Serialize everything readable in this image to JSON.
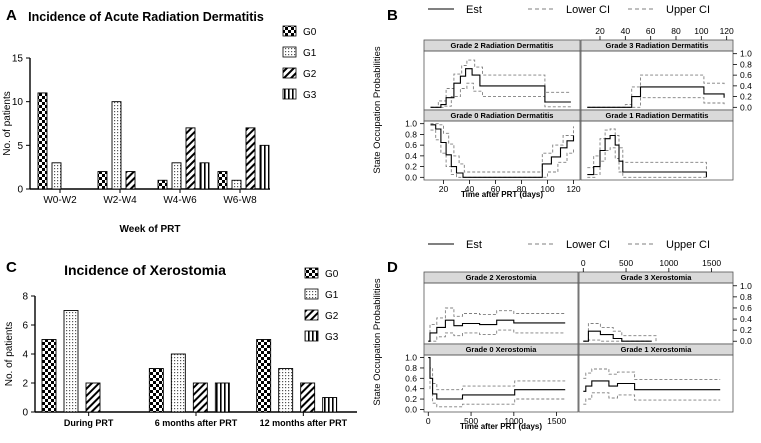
{
  "colors": {
    "axis": "#000000",
    "strip": "#d9d9d9",
    "est": "#000000",
    "ci": "#7f7f7f"
  },
  "chart_data": [
    {
      "panel": "A",
      "type": "bar",
      "title": "Incidence of Acute Radiation Dermatitis",
      "xlabel": "Week of PRT",
      "ylabel": "No. of patients",
      "ylim": [
        0,
        15
      ],
      "yticks": [
        0,
        5,
        10,
        15
      ],
      "categories": [
        "W0-W2",
        "W2-W4",
        "W4-W6",
        "W6-W8"
      ],
      "series": [
        {
          "name": "G0",
          "pattern": "checker",
          "values": [
            11,
            2,
            1,
            2
          ]
        },
        {
          "name": "G1",
          "pattern": "dots",
          "values": [
            3,
            10,
            3,
            1
          ]
        },
        {
          "name": "G2",
          "pattern": "diagonal",
          "values": [
            0,
            2,
            7,
            7
          ]
        },
        {
          "name": "G3",
          "pattern": "vertical",
          "values": [
            0,
            0,
            3,
            5
          ]
        }
      ]
    },
    {
      "panel": "C",
      "type": "bar",
      "title": "Incidence of Xerostomia",
      "xlabel": "",
      "ylabel": "No. of patients",
      "ylim": [
        0,
        8
      ],
      "yticks": [
        0,
        2,
        4,
        6,
        8
      ],
      "categories": [
        "During PRT",
        "6 months after PRT",
        "12 months after PRT"
      ],
      "series": [
        {
          "name": "G0",
          "pattern": "checker",
          "values": [
            5,
            3,
            5
          ]
        },
        {
          "name": "G1",
          "pattern": "dots",
          "values": [
            7,
            4,
            3
          ]
        },
        {
          "name": "G2",
          "pattern": "diagonal",
          "values": [
            2,
            2,
            2
          ]
        },
        {
          "name": "G3",
          "pattern": "vertical",
          "values": [
            0,
            2,
            1
          ]
        }
      ]
    },
    {
      "panel": "B",
      "type": "line",
      "legend": [
        "Est",
        "Lower CI",
        "Upper CI"
      ],
      "ylabel": "State Occupation Probabilities",
      "xlabel": "Time after PRT (days)",
      "xlim": [
        5,
        125
      ],
      "xticks": [
        20,
        40,
        60,
        80,
        100,
        120
      ],
      "ylim": [
        -0.05,
        1.05
      ],
      "yticks": [
        0.0,
        0.2,
        0.4,
        0.6,
        0.8,
        1.0
      ],
      "panels": [
        {
          "title": "Grade 2 Radiation Dermatitis",
          "est": [
            [
              10,
              0
            ],
            [
              18,
              0.05
            ],
            [
              22,
              0.18
            ],
            [
              28,
              0.45
            ],
            [
              33,
              0.58
            ],
            [
              37,
              0.72
            ],
            [
              42,
              0.6
            ],
            [
              48,
              0.4
            ],
            [
              95,
              0.4
            ],
            [
              98,
              0.1
            ],
            [
              118,
              0.1
            ]
          ],
          "lower": [
            [
              10,
              0
            ],
            [
              20,
              0.02
            ],
            [
              26,
              0.2
            ],
            [
              33,
              0.35
            ],
            [
              38,
              0.45
            ],
            [
              43,
              0.3
            ],
            [
              50,
              0.2
            ],
            [
              95,
              0.2
            ],
            [
              98,
              0.01
            ],
            [
              118,
              0.01
            ]
          ],
          "upper": [
            [
              10,
              0
            ],
            [
              16,
              0.12
            ],
            [
              22,
              0.35
            ],
            [
              28,
              0.62
            ],
            [
              34,
              0.78
            ],
            [
              38,
              0.88
            ],
            [
              44,
              0.75
            ],
            [
              50,
              0.6
            ],
            [
              95,
              0.6
            ],
            [
              98,
              0.28
            ],
            [
              118,
              0.28
            ]
          ]
        },
        {
          "title": "Grade 3 Radiation Dermatitis",
          "est": [
            [
              10,
              0
            ],
            [
              40,
              0
            ],
            [
              45,
              0.2
            ],
            [
              52,
              0.38
            ],
            [
              95,
              0.38
            ],
            [
              102,
              0.25
            ],
            [
              118,
              0.18
            ]
          ],
          "lower": [
            [
              10,
              0
            ],
            [
              45,
              0
            ],
            [
              52,
              0.18
            ],
            [
              95,
              0.18
            ],
            [
              102,
              0.08
            ],
            [
              118,
              0.02
            ]
          ],
          "upper": [
            [
              10,
              0
            ],
            [
              40,
              0.05
            ],
            [
              45,
              0.38
            ],
            [
              52,
              0.6
            ],
            [
              95,
              0.6
            ],
            [
              102,
              0.45
            ],
            [
              118,
              0.4
            ]
          ]
        },
        {
          "title": "Grade 0 Radiation Dermatitis",
          "est": [
            [
              10,
              0.98
            ],
            [
              14,
              0.9
            ],
            [
              18,
              0.65
            ],
            [
              22,
              0.42
            ],
            [
              26,
              0.2
            ],
            [
              30,
              0.08
            ],
            [
              35,
              0
            ],
            [
              92,
              0
            ],
            [
              96,
              0.25
            ],
            [
              103,
              0.38
            ],
            [
              110,
              0.55
            ],
            [
              115,
              0.68
            ],
            [
              120,
              0.78
            ]
          ],
          "lower": [
            [
              10,
              0.88
            ],
            [
              14,
              0.7
            ],
            [
              18,
              0.45
            ],
            [
              22,
              0.2
            ],
            [
              26,
              0.05
            ],
            [
              30,
              0
            ],
            [
              96,
              0
            ],
            [
              100,
              0.1
            ],
            [
              108,
              0.28
            ],
            [
              115,
              0.45
            ],
            [
              120,
              0.55
            ]
          ],
          "upper": [
            [
              10,
              1.0
            ],
            [
              16,
              0.98
            ],
            [
              20,
              0.82
            ],
            [
              24,
              0.62
            ],
            [
              28,
              0.4
            ],
            [
              32,
              0.25
            ],
            [
              36,
              0.1
            ],
            [
              92,
              0.1
            ],
            [
              96,
              0.45
            ],
            [
              104,
              0.6
            ],
            [
              112,
              0.78
            ],
            [
              120,
              0.95
            ]
          ]
        },
        {
          "title": "Grade 1 Radiation Dermatitis",
          "est": [
            [
              10,
              0.05
            ],
            [
              15,
              0.2
            ],
            [
              20,
              0.5
            ],
            [
              24,
              0.72
            ],
            [
              28,
              0.78
            ],
            [
              32,
              0.6
            ],
            [
              35,
              0.3
            ],
            [
              38,
              0.1
            ],
            [
              100,
              0.1
            ],
            [
              104,
              0
            ]
          ],
          "lower": [
            [
              10,
              0
            ],
            [
              16,
              0.05
            ],
            [
              20,
              0.3
            ],
            [
              24,
              0.5
            ],
            [
              28,
              0.55
            ],
            [
              32,
              0.35
            ],
            [
              35,
              0.1
            ],
            [
              38,
              0
            ],
            [
              104,
              0
            ]
          ],
          "upper": [
            [
              10,
              0.18
            ],
            [
              15,
              0.4
            ],
            [
              20,
              0.72
            ],
            [
              24,
              0.88
            ],
            [
              28,
              0.9
            ],
            [
              32,
              0.78
            ],
            [
              35,
              0.55
            ],
            [
              38,
              0.28
            ],
            [
              100,
              0.28
            ],
            [
              104,
              0.12
            ]
          ]
        }
      ]
    },
    {
      "panel": "D",
      "type": "line",
      "legend": [
        "Est",
        "Lower CI",
        "Upper CI"
      ],
      "ylabel": "State Occupation Probabilities",
      "xlabel": "Time after PRT (days)",
      "xlim": [
        -50,
        1750
      ],
      "xticks": [
        0,
        500,
        1000,
        1500
      ],
      "ylim": [
        -0.05,
        1.05
      ],
      "yticks": [
        0.0,
        0.2,
        0.4,
        0.6,
        0.8,
        1.0
      ],
      "panels": [
        {
          "title": "Grade 2 Xerostomia",
          "est": [
            [
              0,
              0
            ],
            [
              20,
              0.15
            ],
            [
              100,
              0.25
            ],
            [
              200,
              0.38
            ],
            [
              300,
              0.28
            ],
            [
              400,
              0.32
            ],
            [
              600,
              0.3
            ],
            [
              800,
              0.38
            ],
            [
              1000,
              0.33
            ],
            [
              1600,
              0.33
            ]
          ],
          "lower": [
            [
              0,
              0
            ],
            [
              100,
              0.08
            ],
            [
              200,
              0.15
            ],
            [
              300,
              0.1
            ],
            [
              400,
              0.15
            ],
            [
              600,
              0.12
            ],
            [
              800,
              0.2
            ],
            [
              1000,
              0.15
            ],
            [
              1600,
              0.15
            ]
          ],
          "upper": [
            [
              0,
              0
            ],
            [
              20,
              0.3
            ],
            [
              100,
              0.42
            ],
            [
              200,
              0.6
            ],
            [
              300,
              0.45
            ],
            [
              400,
              0.5
            ],
            [
              600,
              0.48
            ],
            [
              800,
              0.55
            ],
            [
              1000,
              0.5
            ],
            [
              1600,
              0.5
            ]
          ]
        },
        {
          "title": "Grade 3 Xerostomia",
          "est": [
            [
              0,
              0
            ],
            [
              60,
              0.18
            ],
            [
              200,
              0.12
            ],
            [
              350,
              0.05
            ],
            [
              450,
              0
            ],
            [
              800,
              0
            ]
          ],
          "lower": [
            [
              0,
              0
            ],
            [
              60,
              0.02
            ],
            [
              200,
              0
            ],
            [
              800,
              0
            ]
          ],
          "upper": [
            [
              0,
              0
            ],
            [
              60,
              0.32
            ],
            [
              200,
              0.25
            ],
            [
              350,
              0.18
            ],
            [
              450,
              0.1
            ],
            [
              800,
              0.1
            ],
            [
              850,
              0
            ]
          ]
        },
        {
          "title": "Grade 0 Xerostomia",
          "est": [
            [
              0,
              1.0
            ],
            [
              20,
              0.6
            ],
            [
              50,
              0.3
            ],
            [
              100,
              0.2
            ],
            [
              300,
              0.2
            ],
            [
              400,
              0.28
            ],
            [
              1000,
              0.28
            ],
            [
              1010,
              0.38
            ],
            [
              1600,
              0.38
            ]
          ],
          "lower": [
            [
              0,
              1.0
            ],
            [
              20,
              0.4
            ],
            [
              50,
              0.12
            ],
            [
              100,
              0.05
            ],
            [
              300,
              0.05
            ],
            [
              400,
              0.1
            ],
            [
              1000,
              0.1
            ],
            [
              1010,
              0.2
            ],
            [
              1600,
              0.2
            ]
          ],
          "upper": [
            [
              0,
              1.0
            ],
            [
              20,
              0.8
            ],
            [
              50,
              0.5
            ],
            [
              100,
              0.38
            ],
            [
              300,
              0.38
            ],
            [
              400,
              0.45
            ],
            [
              1000,
              0.45
            ],
            [
              1010,
              0.55
            ],
            [
              1600,
              0.55
            ]
          ]
        },
        {
          "title": "Grade 1 Xerostomia",
          "est": [
            [
              0,
              0.35
            ],
            [
              30,
              0.45
            ],
            [
              100,
              0.55
            ],
            [
              300,
              0.45
            ],
            [
              400,
              0.5
            ],
            [
              600,
              0.38
            ],
            [
              1600,
              0.38
            ]
          ],
          "lower": [
            [
              0,
              0.1
            ],
            [
              30,
              0.2
            ],
            [
              100,
              0.32
            ],
            [
              300,
              0.22
            ],
            [
              400,
              0.28
            ],
            [
              600,
              0.18
            ],
            [
              1600,
              0.18
            ]
          ],
          "upper": [
            [
              0,
              0.6
            ],
            [
              30,
              0.7
            ],
            [
              100,
              0.78
            ],
            [
              300,
              0.68
            ],
            [
              400,
              0.72
            ],
            [
              600,
              0.58
            ],
            [
              1600,
              0.58
            ]
          ]
        }
      ]
    }
  ]
}
